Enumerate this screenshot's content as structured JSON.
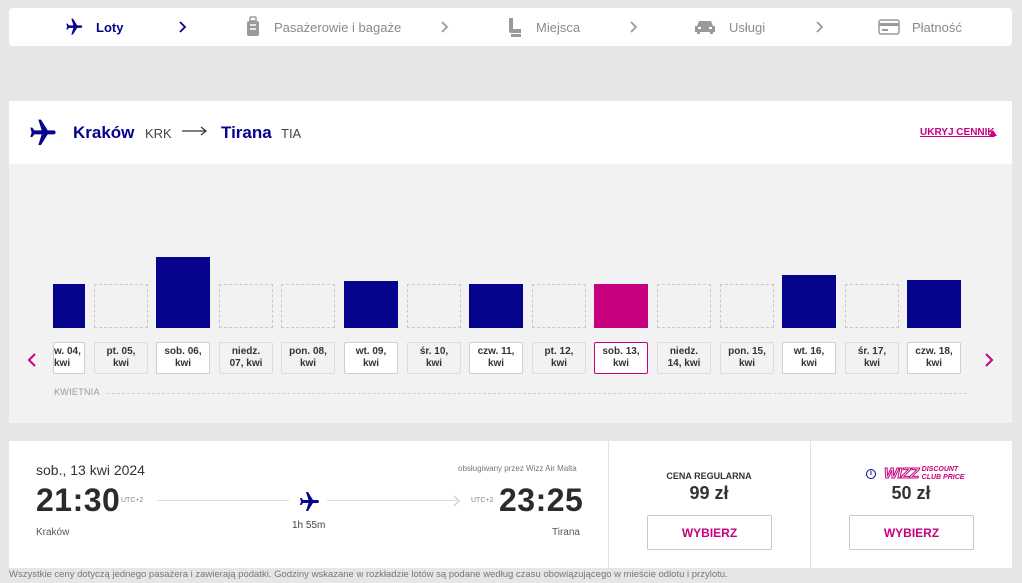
{
  "stepper": {
    "steps": [
      {
        "label": "Loty",
        "active": true
      },
      {
        "label": "Pasażerowie i bagaże",
        "active": false
      },
      {
        "label": "Miejsca",
        "active": false
      },
      {
        "label": "Usługi",
        "active": false
      },
      {
        "label": "Płatność",
        "active": false
      }
    ]
  },
  "route": {
    "origin": {
      "city": "Kraków",
      "code": "KRK"
    },
    "destination": {
      "city": "Tirana",
      "code": "TIA"
    },
    "hide_prices_label": "UKRYJ CENNIK",
    "month_label": "KWIETNIA",
    "days": [
      {
        "line1": "w. 04,",
        "line2": "kwi",
        "has_price": true,
        "price_level": 0.52,
        "selected": false
      },
      {
        "line1": "pt. 05,",
        "line2": "kwi",
        "has_price": false,
        "price_level": 0,
        "selected": false
      },
      {
        "line1": "sob. 06,",
        "line2": "kwi",
        "has_price": true,
        "price_level": 0.83,
        "selected": false
      },
      {
        "line1": "niedz.",
        "line2": "07, kwi",
        "has_price": false,
        "price_level": 0,
        "selected": false
      },
      {
        "line1": "pon. 08,",
        "line2": "kwi",
        "has_price": false,
        "price_level": 0,
        "selected": false
      },
      {
        "line1": "wt. 09,",
        "line2": "kwi",
        "has_price": true,
        "price_level": 0.55,
        "selected": false
      },
      {
        "line1": "śr. 10,",
        "line2": "kwi",
        "has_price": false,
        "price_level": 0,
        "selected": false
      },
      {
        "line1": "czw. 11,",
        "line2": "kwi",
        "has_price": true,
        "price_level": 0.52,
        "selected": false
      },
      {
        "line1": "pt. 12,",
        "line2": "kwi",
        "has_price": false,
        "price_level": 0,
        "selected": false
      },
      {
        "line1": "sob. 13,",
        "line2": "kwi",
        "has_price": true,
        "price_level": 0.52,
        "selected": true
      },
      {
        "line1": "niedz.",
        "line2": "14, kwi",
        "has_price": false,
        "price_level": 0,
        "selected": false
      },
      {
        "line1": "pon. 15,",
        "line2": "kwi",
        "has_price": false,
        "price_level": 0,
        "selected": false
      },
      {
        "line1": "wt. 16,",
        "line2": "kwi",
        "has_price": true,
        "price_level": 0.62,
        "selected": false
      },
      {
        "line1": "śr. 17,",
        "line2": "kwi",
        "has_price": false,
        "price_level": 0,
        "selected": false
      },
      {
        "line1": "czw. 18,",
        "line2": "kwi",
        "has_price": true,
        "price_level": 0.56,
        "selected": false
      }
    ]
  },
  "flight": {
    "date": "sob., 13 kwi 2024",
    "operated_by": "obsługiwany przez Wizz Air Malta",
    "departure_time": "21:30",
    "departure_tz": "UTC+2",
    "departure_city": "Kraków",
    "arrival_time": "23:25",
    "arrival_tz": "UTC+2",
    "arrival_city": "Tirana",
    "duration": "1h 55m"
  },
  "fares": {
    "regular": {
      "title": "CENA REGULARNA",
      "price": "99 zł",
      "button": "WYBIERZ"
    },
    "discount": {
      "brand_top": "WIZZ",
      "brand_line1": "DISCOUNT",
      "brand_line2": "CLUB PRICE",
      "info_icon_text": "i",
      "price": "50 zł",
      "button": "WYBIERZ"
    }
  },
  "footer_note": "Wszystkie ceny dotyczą jednego pasażera i zawierają podatki. Godziny wskazane w rozkładzie lotów są podane według czasu obowiązującego w mieście odlotu i przylotu.",
  "colors": {
    "brand_blue": "#06038d",
    "brand_magenta": "#c6007e"
  }
}
